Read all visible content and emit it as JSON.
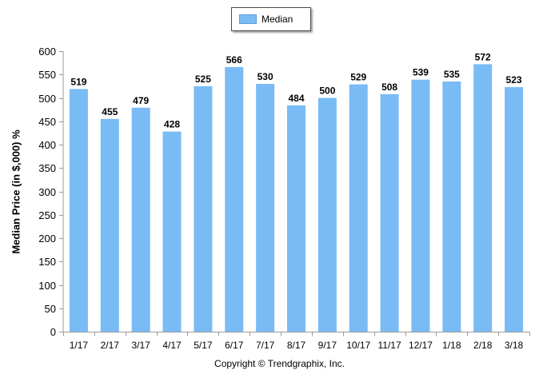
{
  "chart_data": {
    "type": "bar",
    "categories": [
      "1/17",
      "2/17",
      "3/17",
      "4/17",
      "5/17",
      "6/17",
      "7/17",
      "8/17",
      "9/17",
      "10/17",
      "11/17",
      "12/17",
      "1/18",
      "2/18",
      "3/18"
    ],
    "series": [
      {
        "name": "Median",
        "values": [
          519,
          455,
          479,
          428,
          525,
          566,
          530,
          484,
          500,
          529,
          508,
          539,
          535,
          572,
          523
        ]
      }
    ],
    "xlabel": "",
    "ylabel": "Median Price (in $,000) %",
    "ylim": [
      0,
      600
    ],
    "yticks": [
      0,
      50,
      100,
      150,
      200,
      250,
      300,
      350,
      400,
      450,
      500,
      550,
      600
    ],
    "grid": false,
    "legend": "top-center",
    "bar_color": "#79bbf5",
    "data_labels": true
  },
  "footer": {
    "copyright": "Copyright © Trendgraphix, Inc."
  }
}
